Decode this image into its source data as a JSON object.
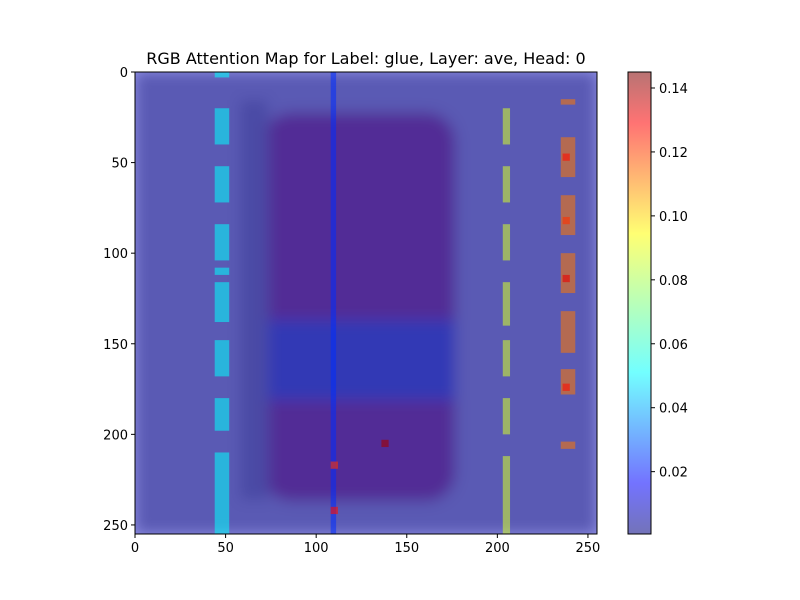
{
  "chart_data": {
    "type": "heatmap",
    "title": "RGB Attention Map for Label: glue, Layer: ave, Head: 0",
    "xlabel": "",
    "ylabel": "",
    "xlim": [
      0,
      255
    ],
    "ylim": [
      255,
      0
    ],
    "x_ticks": [
      0,
      50,
      100,
      150,
      200,
      250
    ],
    "y_ticks": [
      0,
      50,
      100,
      150,
      200,
      250
    ],
    "grid": false,
    "colormap": "jet",
    "overlay_alpha": 0.5,
    "colorbar": {
      "range": [
        0.0005,
        0.145
      ],
      "ticks": [
        0.02,
        0.04,
        0.06,
        0.08,
        0.1,
        0.12,
        0.14
      ],
      "tick_labels": [
        "0.02",
        "0.04",
        "0.06",
        "0.08",
        "0.10",
        "0.12",
        "0.14"
      ]
    },
    "column_bands": [
      {
        "x": [
          44,
          52
        ],
        "y_segments": [
          [
            0,
            3
          ],
          [
            20,
            40
          ],
          [
            52,
            72
          ],
          [
            84,
            104
          ],
          [
            108,
            112
          ],
          [
            116,
            138
          ],
          [
            148,
            168
          ],
          [
            180,
            198
          ],
          [
            210,
            255
          ]
        ],
        "value": 0.055
      },
      {
        "x": [
          108,
          111
        ],
        "y_segments": [
          [
            0,
            255
          ]
        ],
        "value": 0.025
      },
      {
        "x": [
          203,
          207
        ],
        "y_segments": [
          [
            20,
            40
          ],
          [
            52,
            72
          ],
          [
            84,
            104
          ],
          [
            116,
            140
          ],
          [
            148,
            168
          ],
          [
            180,
            200
          ],
          [
            212,
            255
          ]
        ],
        "value": 0.085
      },
      {
        "x": [
          235,
          243
        ],
        "y_segments": [
          [
            15,
            18
          ],
          [
            36,
            58
          ],
          [
            68,
            90
          ],
          [
            100,
            122
          ],
          [
            132,
            155
          ],
          [
            164,
            178
          ],
          [
            204,
            208
          ]
        ],
        "value": 0.11
      }
    ],
    "hotspots": [
      {
        "x": 236,
        "y": 45,
        "value": 0.125
      },
      {
        "x": 236,
        "y": 80,
        "value": 0.12
      },
      {
        "x": 236,
        "y": 112,
        "value": 0.13
      },
      {
        "x": 236,
        "y": 172,
        "value": 0.125
      },
      {
        "x": 136,
        "y": 203,
        "value": 0.14
      },
      {
        "x": 108,
        "y": 215,
        "value": 0.12
      },
      {
        "x": 108,
        "y": 240,
        "value": 0.125
      }
    ],
    "base_value": 0.01
  },
  "colors": {
    "background_image_body": "#7a2d5c",
    "background_image_label": "#3a4a9a",
    "background_image_surround": "#8a8a98"
  }
}
